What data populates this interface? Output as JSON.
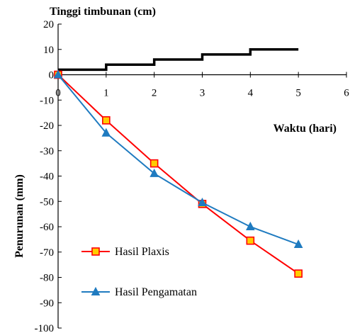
{
  "chart_data": {
    "type": "line",
    "title": "Tinggi timbunan (cm)",
    "xlabel": "Waktu (hari)",
    "ylabel": "Penurunan (mm)",
    "xlim": [
      0,
      6
    ],
    "ylim": [
      -100,
      20
    ],
    "x_ticks": [
      "0",
      "1",
      "2",
      "3",
      "4",
      "5",
      "6"
    ],
    "y_ticks": [
      "20",
      "10",
      "0",
      "-10",
      "-20",
      "-30",
      "-40",
      "-50",
      "-60",
      "-70",
      "-80",
      "-90",
      "-100"
    ],
    "grid": false,
    "legend_position": "bottom-left",
    "fill_height": {
      "style": "step",
      "color": "#000000",
      "points": [
        [
          0,
          2
        ],
        [
          1,
          2
        ],
        [
          1,
          4
        ],
        [
          2,
          4
        ],
        [
          2,
          6
        ],
        [
          3,
          6
        ],
        [
          3,
          8
        ],
        [
          4,
          8
        ],
        [
          4,
          10
        ],
        [
          5,
          10
        ]
      ]
    },
    "series": [
      {
        "name": "Hasil Plaxis",
        "color": "#ff0000",
        "marker": "square",
        "marker_fill": "#ffcc00",
        "x": [
          0,
          1,
          2,
          3,
          4,
          5
        ],
        "y": [
          0,
          -18,
          -35,
          -51,
          -65.5,
          -78.5
        ]
      },
      {
        "name": "Hasil Pengamatan",
        "color": "#1f7bc0",
        "marker": "triangle",
        "marker_fill": "#1f7bc0",
        "x": [
          0,
          1,
          2,
          3,
          4,
          5
        ],
        "y": [
          0,
          -23,
          -39,
          -50.5,
          -60,
          -67
        ]
      }
    ]
  }
}
